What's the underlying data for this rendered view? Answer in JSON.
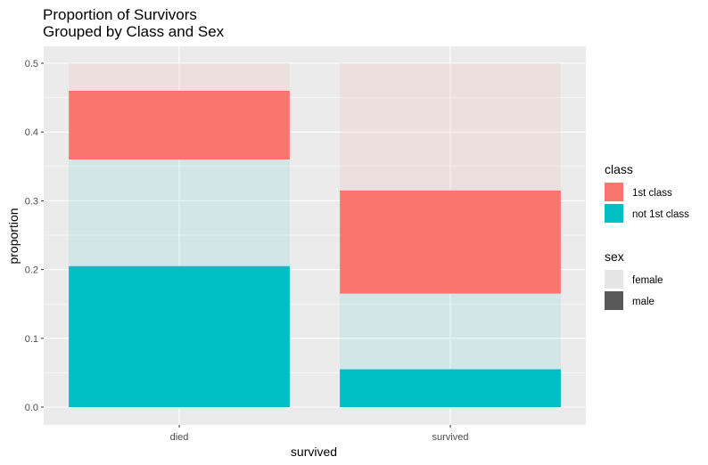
{
  "chart_data": {
    "type": "bar",
    "stacked": true,
    "title": "Proportion of Survivors\nGrouped by Class and Sex",
    "title_lines": [
      "Proportion of Survivors",
      "Grouped by Class and Sex"
    ],
    "xlabel": "survived",
    "ylabel": "proportion",
    "categories": [
      "died",
      "survived"
    ],
    "ylim": [
      0,
      0.5
    ],
    "y_ticks": [
      "0.0",
      "0.1",
      "0.2",
      "0.3",
      "0.4",
      "0.5"
    ],
    "grid": true,
    "legend_position": "right",
    "segments": [
      {
        "class": "not 1st class",
        "sex": "male",
        "values": [
          0.205,
          0.055
        ]
      },
      {
        "class": "not 1st class",
        "sex": "female",
        "values": [
          0.155,
          0.11
        ]
      },
      {
        "class": "1st class",
        "sex": "male",
        "values": [
          0.1,
          0.15
        ]
      },
      {
        "class": "1st class",
        "sex": "female",
        "values": [
          0.04,
          0.185
        ]
      }
    ],
    "legends": [
      {
        "title": "class",
        "entries": [
          {
            "label": "1st class",
            "color": "#F8766D"
          },
          {
            "label": "not 1st class",
            "color": "#00BFC4"
          }
        ]
      },
      {
        "title": "sex",
        "entries": [
          {
            "label": "female",
            "color": "#E5E5E5"
          },
          {
            "label": "male",
            "color": "#595959"
          }
        ]
      }
    ],
    "colors": {
      "1st class": "#F8766D",
      "not 1st class": "#00BFC4",
      "panel_background": "#EBEBEB",
      "grid": "#FFFFFF"
    },
    "female_alpha": 0.1
  }
}
